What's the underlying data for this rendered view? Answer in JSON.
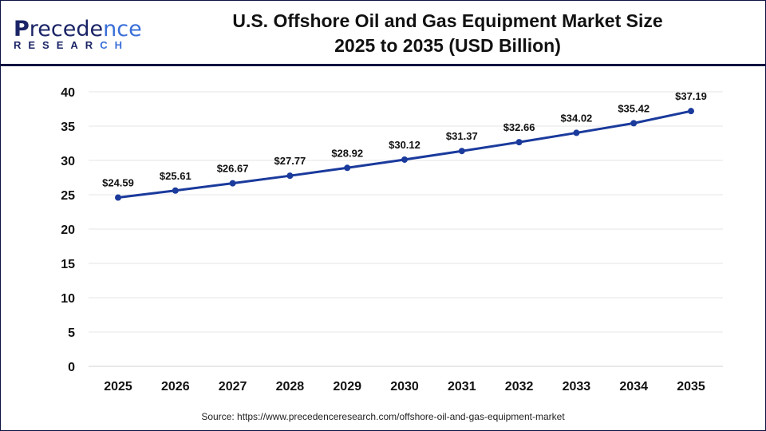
{
  "logo": {
    "line1_a": "P",
    "line1_b": "recede",
    "line1_c": "nce",
    "line2_a": "RESEAR",
    "line2_b": "CH"
  },
  "title_line1": "U.S. Offshore Oil and Gas Equipment Market Size",
  "title_line2": "2025 to 2035 (USD Billion)",
  "source": "Source: https://www.precedenceresearch.com/offshore-oil-and-gas-equipment-market",
  "chart_data": {
    "type": "line",
    "title": "U.S. Offshore Oil and Gas Equipment Market Size 2025 to 2035 (USD Billion)",
    "categories": [
      "2025",
      "2026",
      "2027",
      "2028",
      "2029",
      "2030",
      "2031",
      "2032",
      "2033",
      "2034",
      "2035"
    ],
    "values": [
      24.59,
      25.61,
      26.67,
      27.77,
      28.92,
      30.12,
      31.37,
      32.66,
      34.02,
      35.42,
      37.19
    ],
    "labels": [
      "$24.59",
      "$25.61",
      "$26.67",
      "$27.77",
      "$28.92",
      "$30.12",
      "$31.37",
      "$32.66",
      "$34.02",
      "$35.42",
      "$37.19"
    ],
    "ylim": [
      0,
      40
    ],
    "yticks": [
      0,
      5,
      10,
      15,
      20,
      25,
      30,
      35,
      40
    ],
    "grid": true,
    "line_color": "#1a3a9c",
    "xlabel": "",
    "ylabel": ""
  }
}
